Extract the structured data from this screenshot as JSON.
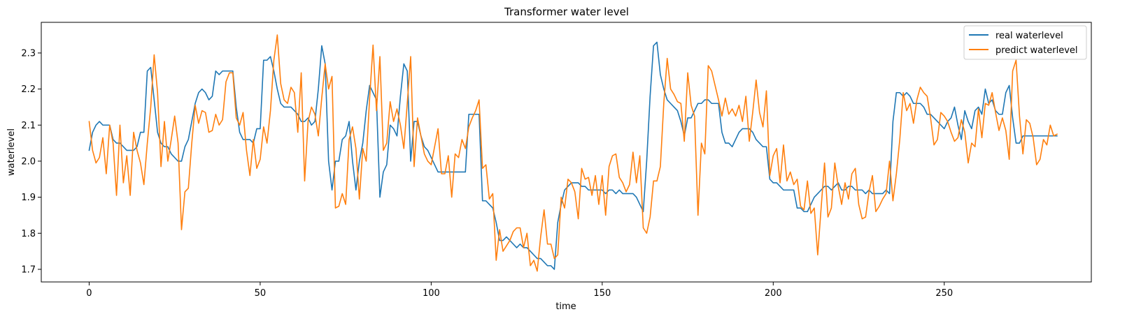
{
  "chart_data": {
    "type": "line",
    "title": "Transformer water level",
    "xlabel": "time",
    "ylabel": "waterlevel",
    "xlim": [
      -14,
      293
    ],
    "ylim": [
      1.665,
      2.385
    ],
    "xticks": [
      0,
      50,
      100,
      150,
      200,
      250
    ],
    "yticks": [
      1.7,
      1.8,
      1.9,
      2.0,
      2.1,
      2.2,
      2.3
    ],
    "grid": false,
    "legend_position": "top-right",
    "series": [
      {
        "name": "real waterlevel",
        "color": "#1f77b4",
        "values": [
          2.03,
          2.08,
          2.1,
          2.11,
          2.1,
          2.1,
          2.1,
          2.06,
          2.05,
          2.05,
          2.04,
          2.03,
          2.03,
          2.03,
          2.04,
          2.08,
          2.08,
          2.25,
          2.26,
          2.17,
          2.08,
          2.05,
          2.04,
          2.04,
          2.02,
          2.01,
          2.0,
          2.0,
          2.04,
          2.06,
          2.11,
          2.16,
          2.19,
          2.2,
          2.19,
          2.17,
          2.18,
          2.25,
          2.24,
          2.25,
          2.25,
          2.25,
          2.25,
          2.15,
          2.08,
          2.06,
          2.06,
          2.06,
          2.05,
          2.09,
          2.09,
          2.28,
          2.28,
          2.29,
          2.25,
          2.2,
          2.16,
          2.15,
          2.15,
          2.15,
          2.14,
          2.13,
          2.11,
          2.11,
          2.12,
          2.1,
          2.11,
          2.2,
          2.32,
          2.27,
          2.0,
          1.92,
          2.0,
          2.0,
          2.06,
          2.07,
          2.11,
          2.0,
          1.92,
          2.0,
          2.05,
          2.14,
          2.21,
          2.19,
          2.17,
          1.9,
          1.97,
          1.99,
          2.1,
          2.09,
          2.07,
          2.18,
          2.27,
          2.25,
          2.0,
          2.11,
          2.11,
          2.07,
          2.04,
          2.03,
          2.01,
          1.99,
          1.97,
          1.97,
          1.97,
          1.97,
          1.97,
          1.97,
          1.97,
          1.97,
          1.97,
          2.13,
          2.13,
          2.13,
          2.13,
          1.89,
          1.89,
          1.88,
          1.87,
          1.83,
          1.78,
          1.78,
          1.79,
          1.78,
          1.77,
          1.76,
          1.77,
          1.76,
          1.76,
          1.75,
          1.74,
          1.73,
          1.73,
          1.72,
          1.71,
          1.71,
          1.7,
          1.83,
          1.88,
          1.92,
          1.93,
          1.94,
          1.94,
          1.94,
          1.93,
          1.93,
          1.92,
          1.92,
          1.92,
          1.92,
          1.92,
          1.91,
          1.92,
          1.92,
          1.91,
          1.92,
          1.91,
          1.91,
          1.91,
          1.91,
          1.9,
          1.88,
          1.86,
          2.0,
          2.18,
          2.32,
          2.33,
          2.24,
          2.2,
          2.17,
          2.16,
          2.15,
          2.14,
          2.11,
          2.07,
          2.12,
          2.12,
          2.14,
          2.16,
          2.16,
          2.17,
          2.17,
          2.16,
          2.16,
          2.16,
          2.08,
          2.05,
          2.05,
          2.04,
          2.06,
          2.08,
          2.09,
          2.09,
          2.09,
          2.08,
          2.06,
          2.05,
          2.04,
          2.04,
          1.95,
          1.94,
          1.94,
          1.93,
          1.92,
          1.92,
          1.92,
          1.92,
          1.87,
          1.87,
          1.86,
          1.86,
          1.88,
          1.9,
          1.91,
          1.92,
          1.93,
          1.93,
          1.92,
          1.93,
          1.94,
          1.92,
          1.92,
          1.93,
          1.93,
          1.92,
          1.92,
          1.92,
          1.91,
          1.92,
          1.91,
          1.91,
          1.91,
          1.91,
          1.92,
          1.91,
          2.11,
          2.19,
          2.19,
          2.18,
          2.19,
          2.18,
          2.16,
          2.16,
          2.16,
          2.15,
          2.13,
          2.13,
          2.12,
          2.11,
          2.1,
          2.09,
          2.11,
          2.12,
          2.15,
          2.1,
          2.06,
          2.14,
          2.11,
          2.09,
          2.14,
          2.15,
          2.13,
          2.2,
          2.16,
          2.17,
          2.14,
          2.13,
          2.13,
          2.19,
          2.21,
          2.12,
          2.05,
          2.05,
          2.07,
          2.07,
          2.07,
          2.07,
          2.07,
          2.07,
          2.07,
          2.07,
          2.07,
          2.07,
          2.07
        ]
      },
      {
        "name": "predict waterlevel",
        "color": "#ff7f0e",
        "values": [
          2.11,
          2.03,
          1.995,
          2.01,
          2.065,
          1.965,
          2.1,
          2.05,
          1.905,
          2.1,
          1.94,
          2.015,
          1.905,
          2.08,
          2.03,
          1.995,
          1.935,
          2.05,
          2.15,
          2.295,
          2.19,
          1.985,
          2.11,
          2.0,
          2.06,
          2.125,
          2.05,
          1.81,
          1.915,
          1.925,
          2.05,
          2.155,
          2.105,
          2.14,
          2.135,
          2.08,
          2.085,
          2.13,
          2.1,
          2.115,
          2.22,
          2.245,
          2.245,
          2.12,
          2.1,
          2.135,
          2.03,
          1.96,
          2.06,
          1.98,
          2.005,
          2.095,
          2.05,
          2.14,
          2.28,
          2.35,
          2.215,
          2.17,
          2.16,
          2.205,
          2.19,
          2.08,
          2.245,
          1.945,
          2.11,
          2.15,
          2.13,
          2.07,
          2.175,
          2.27,
          2.2,
          2.235,
          1.87,
          1.875,
          1.91,
          1.88,
          2.06,
          2.095,
          2.035,
          1.895,
          2.035,
          2.0,
          2.175,
          2.322,
          2.14,
          2.29,
          2.03,
          2.05,
          2.165,
          2.11,
          2.145,
          2.1,
          2.035,
          2.16,
          2.29,
          1.985,
          2.12,
          2.07,
          2.02,
          2.0,
          1.99,
          2.04,
          2.09,
          1.965,
          1.965,
          2.015,
          1.9,
          2.02,
          2.01,
          2.06,
          2.035,
          2.095,
          2.12,
          2.14,
          2.17,
          1.98,
          1.99,
          1.895,
          1.91,
          1.725,
          1.81,
          1.75,
          1.765,
          1.78,
          1.805,
          1.815,
          1.815,
          1.76,
          1.8,
          1.71,
          1.725,
          1.695,
          1.79,
          1.865,
          1.77,
          1.77,
          1.73,
          1.74,
          1.9,
          1.87,
          1.95,
          1.94,
          1.915,
          1.84,
          1.98,
          1.95,
          1.955,
          1.905,
          1.96,
          1.88,
          1.96,
          1.85,
          1.985,
          2.015,
          2.02,
          1.955,
          1.94,
          1.915,
          1.935,
          2.025,
          1.94,
          2.015,
          1.815,
          1.8,
          1.845,
          1.945,
          1.945,
          1.985,
          2.16,
          2.285,
          2.2,
          2.185,
          2.165,
          2.16,
          2.055,
          2.245,
          2.155,
          2.125,
          1.85,
          2.05,
          2.02,
          2.265,
          2.25,
          2.21,
          2.17,
          2.125,
          2.175,
          2.13,
          2.145,
          2.125,
          2.155,
          2.11,
          2.18,
          2.055,
          2.135,
          2.225,
          2.135,
          2.095,
          2.195,
          1.96,
          2.015,
          2.035,
          1.94,
          2.045,
          1.945,
          1.97,
          1.935,
          1.95,
          1.875,
          1.865,
          1.945,
          1.855,
          1.87,
          1.74,
          1.87,
          1.995,
          1.845,
          1.87,
          1.995,
          1.93,
          1.88,
          1.94,
          1.895,
          1.965,
          1.98,
          1.88,
          1.84,
          1.845,
          1.915,
          1.96,
          1.86,
          1.875,
          1.895,
          1.91,
          2.0,
          1.89,
          1.965,
          2.06,
          2.19,
          2.14,
          2.16,
          2.105,
          2.17,
          2.205,
          2.19,
          2.18,
          2.12,
          2.045,
          2.06,
          2.135,
          2.125,
          2.11,
          2.08,
          2.055,
          2.065,
          2.115,
          2.08,
          1.995,
          2.05,
          2.04,
          2.145,
          2.065,
          2.16,
          2.155,
          2.19,
          2.135,
          2.085,
          2.12,
          2.085,
          2.005,
          2.25,
          2.28,
          2.125,
          2.02,
          2.115,
          2.105,
          2.065,
          1.99,
          2.005,
          2.06,
          2.045,
          2.1,
          2.07,
          2.075
        ]
      }
    ]
  }
}
